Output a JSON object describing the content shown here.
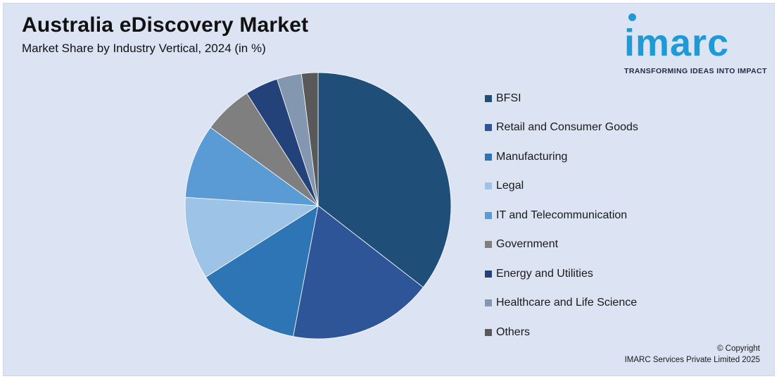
{
  "header": {
    "title": "Australia eDiscovery Market",
    "subtitle": "Market Share by Industry Vertical, 2024 (in %)"
  },
  "logo": {
    "wordmark": "imarc",
    "tagline": "TRANSFORMING IDEAS INTO IMPACT",
    "color": "#1e9ad6"
  },
  "chart_data": {
    "type": "pie",
    "title": "Australia eDiscovery Market",
    "subtitle": "Market Share by Industry Vertical, 2024 (in %)",
    "legend_position": "right",
    "categories": [
      "BFSI",
      "Retail and Consumer Goods",
      "Manufacturing",
      "Legal",
      "IT and Telecommunication",
      "Government",
      "Energy and Utilities",
      "Healthcare and Life Science",
      "Others"
    ],
    "values": [
      35.5,
      17.5,
      13.0,
      10.0,
      9.0,
      6.0,
      4.0,
      3.0,
      2.0
    ],
    "colors": [
      "#1f4e79",
      "#2e5597",
      "#2e75b6",
      "#9dc3e6",
      "#5b9bd5",
      "#7f7f7f",
      "#24427a",
      "#8497b0",
      "#595959"
    ]
  },
  "footer": {
    "copyright_line1": "© Copyright",
    "copyright_line2": "IMARC Services Private Limited 2025"
  }
}
